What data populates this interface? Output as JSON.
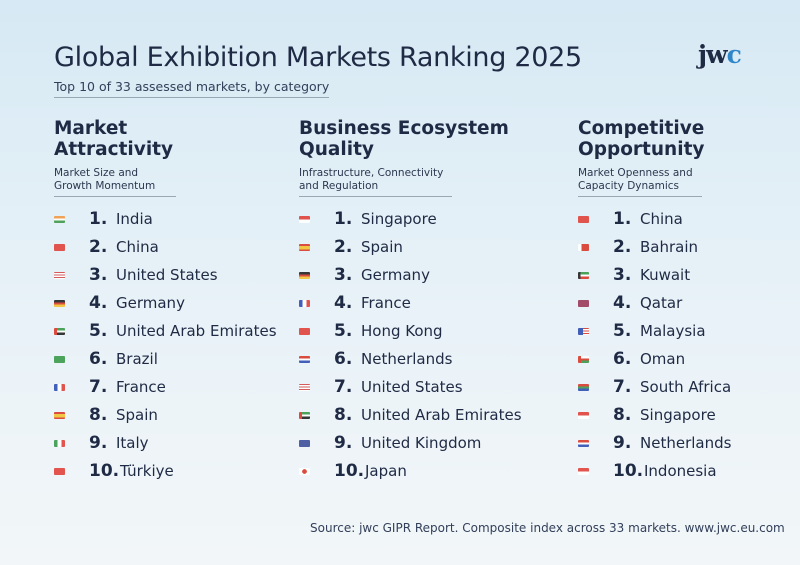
{
  "header": {
    "title": "Global Exhibition Markets Ranking 2025",
    "subtitle": "Top 10 of 33 assessed markets, by category",
    "logo_text": "jwc"
  },
  "columns": [
    {
      "heading_line1": "Market",
      "heading_line2": "Attractivity",
      "sub_line1": "Market Size and",
      "sub_line2": "Growth Momentum",
      "items": [
        {
          "rank": "1.",
          "country": "India",
          "flag": "linear-gradient(#f29a45 0 33%, #ffffff 33% 66%, #3f9a4a 66%)"
        },
        {
          "rank": "2.",
          "country": "China",
          "flag": "#e0423a"
        },
        {
          "rank": "3.",
          "country": "United States",
          "flag": "repeating-linear-gradient(#d24a4a 0 1.2px, #ffffff 1.2px 2.4px)"
        },
        {
          "rank": "4.",
          "country": "Germany",
          "flag": "linear-gradient(#222222 0 33%, #d93a2b 33% 66%, #f2c230 66%)"
        },
        {
          "rank": "5.",
          "country": "United Arab Emirates",
          "flag": "linear-gradient(90deg, #d93a2b 0 28%, transparent 28%), linear-gradient(#3a9a4a 0 33%, #ffffff 33% 66%, #222222 66%)"
        },
        {
          "rank": "6.",
          "country": "Brazil",
          "flag": "#3a9a4a"
        },
        {
          "rank": "7.",
          "country": "France",
          "flag": "linear-gradient(90deg, #2f4fb3 0 33%, #ffffff 33% 66%, #e0423a 66%)"
        },
        {
          "rank": "8.",
          "country": "Spain",
          "flag": "linear-gradient(#d93a2b 0 25%, #f2c230 25% 75%, #d93a2b 75%)"
        },
        {
          "rank": "9.",
          "country": "Italy",
          "flag": "linear-gradient(90deg, #3a9a4a 0 33%, #ffffff 33% 66%, #e0423a 66%)"
        },
        {
          "rank": "10.",
          "country": "Türkiye",
          "flag": "#e0423a"
        }
      ]
    },
    {
      "heading_line1": "Business Ecosystem",
      "heading_line2": "Quality",
      "sub_line1": "Infrastructure, Connectivity",
      "sub_line2": "and Regulation",
      "items": [
        {
          "rank": "1.",
          "country": "Singapore",
          "flag": "linear-gradient(#e0423a 0 50%, #ffffff 50%)"
        },
        {
          "rank": "2.",
          "country": "Spain",
          "flag": "linear-gradient(#d93a2b 0 25%, #f2c230 25% 75%, #d93a2b 75%)"
        },
        {
          "rank": "3.",
          "country": "Germany",
          "flag": "linear-gradient(#222222 0 33%, #d93a2b 33% 66%, #f2c230 66%)"
        },
        {
          "rank": "4.",
          "country": "France",
          "flag": "linear-gradient(90deg, #2f4fb3 0 33%, #ffffff 33% 66%, #e0423a 66%)"
        },
        {
          "rank": "5.",
          "country": "Hong Kong",
          "flag": "#e0423a"
        },
        {
          "rank": "6.",
          "country": "Netherlands",
          "flag": "linear-gradient(#d93a2b 0 33%, #ffffff 33% 66%, #2f4fb3 66%)"
        },
        {
          "rank": "7.",
          "country": "United States",
          "flag": "repeating-linear-gradient(#d24a4a 0 1.2px, #ffffff 1.2px 2.4px)"
        },
        {
          "rank": "8.",
          "country": "United Arab Emirates",
          "flag": "linear-gradient(90deg, #d93a2b 0 28%, transparent 28%), linear-gradient(#3a9a4a 0 33%, #ffffff 33% 66%, #222222 66%)"
        },
        {
          "rank": "9.",
          "country": "United Kingdom",
          "flag": "#3c4f9a"
        },
        {
          "rank": "10.",
          "country": "Japan",
          "flag": "radial-gradient(circle, #d93a2b 0 2.2px, #ffffff 2.5px)"
        }
      ]
    },
    {
      "heading_line1": "Competitive",
      "heading_line2": "Opportunity",
      "sub_line1": "Market Openness and",
      "sub_line2": "Capacity Dynamics",
      "items": [
        {
          "rank": "1.",
          "country": "China",
          "flag": "#e0423a"
        },
        {
          "rank": "2.",
          "country": "Bahrain",
          "flag": "linear-gradient(90deg, #ffffff 0 30%, #d93a2b 30%)"
        },
        {
          "rank": "3.",
          "country": "Kuwait",
          "flag": "linear-gradient(90deg, #222222 0 25%, transparent 25%), linear-gradient(#3a9a4a 0 33%, #ffffff 33% 66%, #d93a2b 66%)"
        },
        {
          "rank": "4.",
          "country": "Qatar",
          "flag": "#9a3a5a"
        },
        {
          "rank": "5.",
          "country": "Malaysia",
          "flag": "linear-gradient(90deg, #2f4fb3 0 45%, transparent 45%), repeating-linear-gradient(#d93a2b 0 1.2px, #ffffff 1.2px 2.4px)"
        },
        {
          "rank": "6.",
          "country": "Oman",
          "flag": "linear-gradient(90deg, #d93a2b 0 28%, transparent 28%), linear-gradient(#ffffff 0 33%, #d93a2b 33% 66%, #3a9a4a 66%)"
        },
        {
          "rank": "7.",
          "country": "South Africa",
          "flag": "linear-gradient(#d93a2b 0 33%, #3a9a4a 33% 66%, #2f4fb3 66%)"
        },
        {
          "rank": "8.",
          "country": "Singapore",
          "flag": "linear-gradient(#e0423a 0 50%, #ffffff 50%)"
        },
        {
          "rank": "9.",
          "country": "Netherlands",
          "flag": "linear-gradient(#d93a2b 0 33%, #ffffff 33% 66%, #2f4fb3 66%)"
        },
        {
          "rank": "10.",
          "country": "Indonesia",
          "flag": "linear-gradient(#e0423a 0 50%, #ffffff 50%)"
        }
      ]
    }
  ],
  "footer": {
    "source": "Source: jwc GIPR Report. Composite index across 33 markets. www.jwc.eu.com"
  }
}
